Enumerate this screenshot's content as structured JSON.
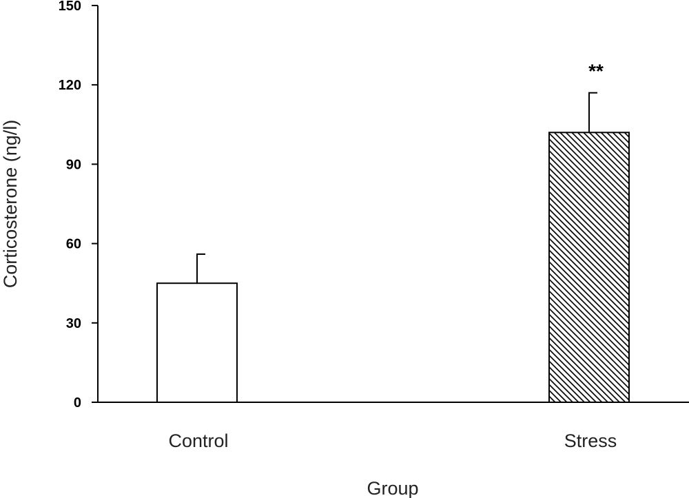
{
  "chart_data": {
    "type": "bar",
    "categories": [
      "Control",
      "Stress"
    ],
    "values": [
      45,
      102
    ],
    "errors": [
      11,
      15
    ],
    "annotations": [
      "",
      "**"
    ],
    "xlabel": "Group",
    "ylabel": "Corticosterone (ng/l)",
    "ylim": [
      0,
      150
    ],
    "yticks": [
      0,
      30,
      60,
      90,
      120,
      150
    ],
    "grid": false,
    "bar_fills": [
      "plain",
      "hatched"
    ],
    "colors": {
      "bar_outline": "#000000",
      "plain_fill": "#ffffff",
      "hatch_line": "#000000",
      "hatch_bg": "#ffffff"
    }
  }
}
